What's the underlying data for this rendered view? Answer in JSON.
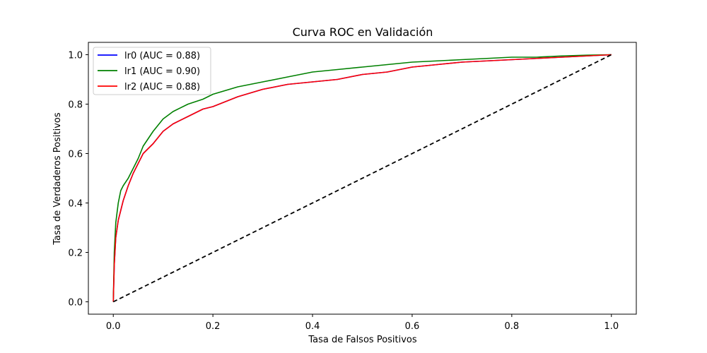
{
  "chart_data": {
    "type": "line",
    "title": "Curva ROC en Validación",
    "xlabel": "Tasa de Falsos Positivos",
    "ylabel": "Tasa de Verdaderos Positivos",
    "xlim": [
      -0.05,
      1.05
    ],
    "ylim": [
      -0.05,
      1.05
    ],
    "xticks": [
      "0.0",
      "0.2",
      "0.4",
      "0.6",
      "0.8",
      "1.0"
    ],
    "yticks": [
      "0.0",
      "0.2",
      "0.4",
      "0.6",
      "0.8",
      "1.0"
    ],
    "grid": false,
    "legend_position": "top-left",
    "series": [
      {
        "name": "lr0 (AUC = 0.88)",
        "color": "#0000ff",
        "x": [
          0,
          0.002,
          0.005,
          0.01,
          0.015,
          0.02,
          0.03,
          0.04,
          0.05,
          0.06,
          0.08,
          0.1,
          0.12,
          0.15,
          0.18,
          0.2,
          0.25,
          0.3,
          0.35,
          0.4,
          0.45,
          0.5,
          0.55,
          0.6,
          0.65,
          0.7,
          0.75,
          0.8,
          0.85,
          0.9,
          0.95,
          1.0
        ],
        "y": [
          0,
          0.15,
          0.26,
          0.33,
          0.37,
          0.41,
          0.47,
          0.52,
          0.56,
          0.6,
          0.64,
          0.69,
          0.72,
          0.75,
          0.78,
          0.79,
          0.83,
          0.86,
          0.88,
          0.89,
          0.9,
          0.92,
          0.93,
          0.95,
          0.96,
          0.97,
          0.975,
          0.98,
          0.985,
          0.99,
          0.995,
          1.0
        ]
      },
      {
        "name": "lr1 (AUC = 0.90)",
        "color": "#008000",
        "x": [
          0,
          0.002,
          0.005,
          0.01,
          0.015,
          0.02,
          0.03,
          0.04,
          0.05,
          0.06,
          0.08,
          0.1,
          0.12,
          0.15,
          0.18,
          0.2,
          0.25,
          0.3,
          0.35,
          0.4,
          0.45,
          0.5,
          0.55,
          0.6,
          0.65,
          0.7,
          0.75,
          0.8,
          0.85,
          0.9,
          0.95,
          1.0
        ],
        "y": [
          0,
          0.2,
          0.32,
          0.4,
          0.45,
          0.47,
          0.5,
          0.54,
          0.58,
          0.63,
          0.69,
          0.74,
          0.77,
          0.8,
          0.82,
          0.84,
          0.87,
          0.89,
          0.91,
          0.93,
          0.94,
          0.95,
          0.96,
          0.97,
          0.975,
          0.98,
          0.985,
          0.99,
          0.99,
          0.995,
          0.998,
          1.0
        ]
      },
      {
        "name": "lr2 (AUC = 0.88)",
        "color": "#ff0000",
        "x": [
          0,
          0.002,
          0.005,
          0.01,
          0.015,
          0.02,
          0.03,
          0.04,
          0.05,
          0.06,
          0.08,
          0.1,
          0.12,
          0.15,
          0.18,
          0.2,
          0.25,
          0.3,
          0.35,
          0.4,
          0.45,
          0.5,
          0.55,
          0.6,
          0.65,
          0.7,
          0.75,
          0.8,
          0.85,
          0.9,
          0.95,
          1.0
        ],
        "y": [
          0,
          0.15,
          0.26,
          0.33,
          0.37,
          0.41,
          0.47,
          0.52,
          0.56,
          0.6,
          0.64,
          0.69,
          0.72,
          0.75,
          0.78,
          0.79,
          0.83,
          0.86,
          0.88,
          0.89,
          0.9,
          0.92,
          0.93,
          0.95,
          0.96,
          0.97,
          0.975,
          0.98,
          0.985,
          0.99,
          0.995,
          1.0
        ]
      }
    ],
    "reference_line": {
      "color": "#000000",
      "style": "dashed",
      "x": [
        0,
        1
      ],
      "y": [
        0,
        1
      ]
    }
  }
}
